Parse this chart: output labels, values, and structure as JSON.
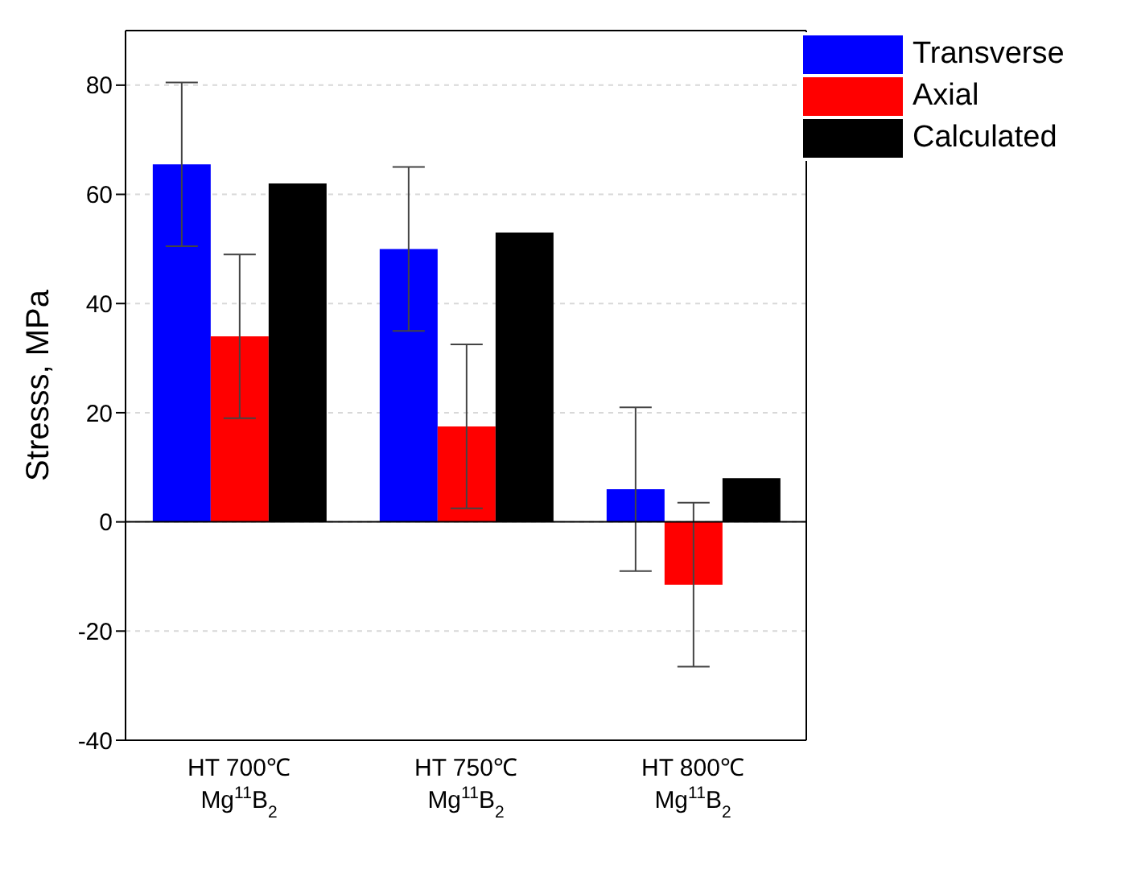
{
  "chart_data": {
    "type": "bar",
    "ylabel": "Stresss, MPa",
    "categories": [
      "HT 700℃\nMg$^{11}$B$_{2}$",
      "HT 750℃\nMg$^{11}$B$_{2}$",
      "HT 800℃\nMg$^{11}$B$_{2}$"
    ],
    "series": [
      {
        "name": "Transverse",
        "color": "#0000ff",
        "values": [
          65.5,
          50,
          6
        ],
        "errors": [
          15,
          15,
          15
        ]
      },
      {
        "name": "Axial",
        "color": "#ff0000",
        "values": [
          34,
          17.5,
          -11.5
        ],
        "errors": [
          15,
          15,
          15
        ]
      },
      {
        "name": "Calculated",
        "color": "#000000",
        "values": [
          62,
          53,
          8
        ]
      }
    ],
    "ylim": [
      -40,
      90
    ],
    "yticks": [
      -40,
      -20,
      0,
      20,
      40,
      60,
      80
    ],
    "grid": "y",
    "legend": "top right",
    "ref_lines": [
      {
        "axis": "y",
        "value": 0,
        "color": "#000000"
      }
    ]
  }
}
